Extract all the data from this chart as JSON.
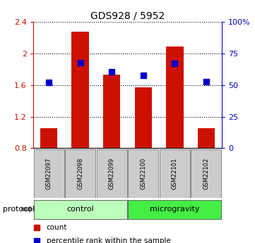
{
  "title": "GDS928 / 5952",
  "samples": [
    "GSM22097",
    "GSM22098",
    "GSM22099",
    "GSM22100",
    "GSM22101",
    "GSM22102"
  ],
  "bar_bottoms": [
    0.8,
    0.8,
    0.8,
    0.8,
    0.8,
    0.8
  ],
  "bar_tops": [
    1.05,
    2.28,
    1.73,
    1.57,
    2.09,
    1.05
  ],
  "bar_color": "#cc1100",
  "blue_values_left": [
    1.63,
    1.88,
    1.77,
    1.72,
    1.87,
    1.64
  ],
  "blue_color": "#0000cc",
  "ylim_left": [
    0.8,
    2.4
  ],
  "ylim_right": [
    0,
    100
  ],
  "yticks_left": [
    0.8,
    1.2,
    1.6,
    2.0,
    2.4
  ],
  "ytick_labels_left": [
    "0.8",
    "1.2",
    "1.6",
    "2",
    "2.4"
  ],
  "yticks_right": [
    0,
    25,
    50,
    75,
    100
  ],
  "ytick_labels_right": [
    "0",
    "25",
    "50",
    "75",
    "100%"
  ],
  "groups": [
    {
      "label": "control",
      "start": 0,
      "end": 3,
      "color": "#bbffbb"
    },
    {
      "label": "microgravity",
      "start": 3,
      "end": 6,
      "color": "#44ee44"
    }
  ],
  "protocol_label": "protocol",
  "legend_items": [
    {
      "label": "count",
      "color": "#cc1100"
    },
    {
      "label": "percentile rank within the sample",
      "color": "#0000cc"
    }
  ],
  "background_color": "#ffffff",
  "bar_width": 0.55,
  "blue_marker_size": 6
}
